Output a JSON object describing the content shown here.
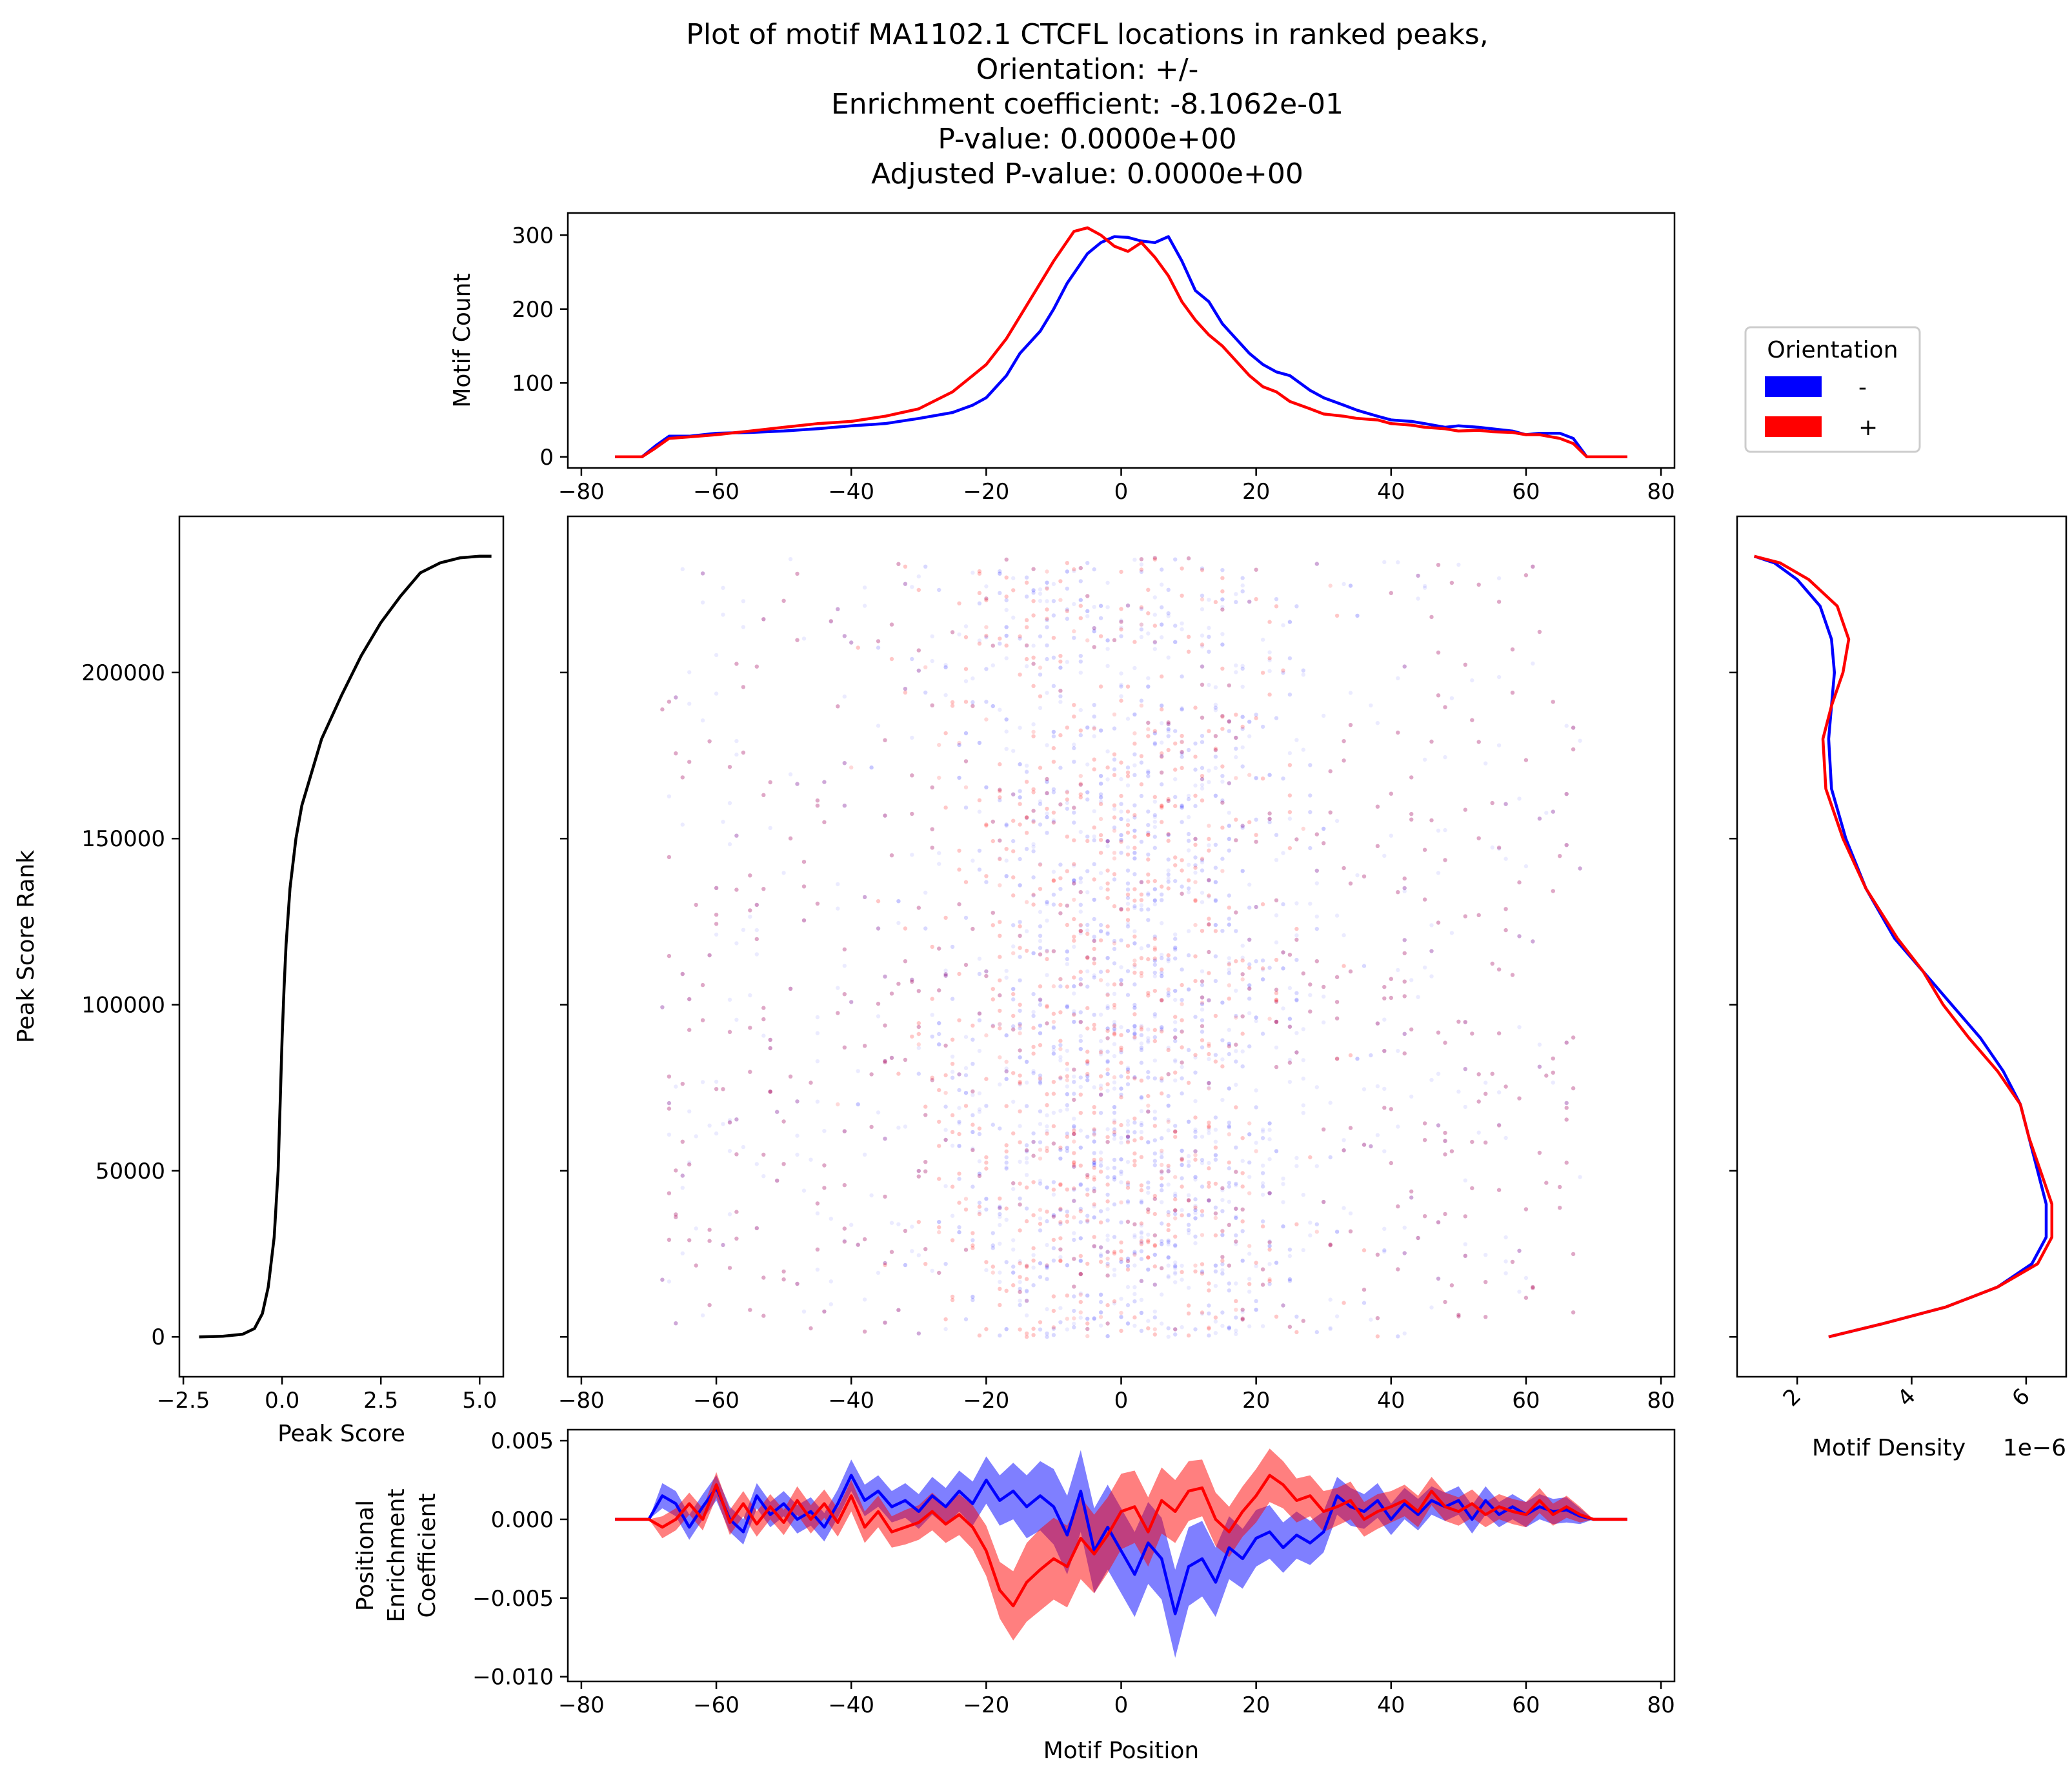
{
  "title_lines": [
    "Plot of motif MA1102.1 CTCFL locations in ranked peaks,",
    "Orientation: +/-",
    "Enrichment coefficient: -8.1062e-01",
    "P-value: 0.0000e+00",
    "Adjusted P-value: 0.0000e+00"
  ],
  "legend": {
    "title": "Orientation",
    "placement": "right of top panel",
    "entries": [
      {
        "label": "-",
        "color": "#0000ff"
      },
      {
        "label": "+",
        "color": "#ff0000"
      }
    ]
  },
  "colors": {
    "minus": "#0000ff",
    "plus": "#ff0000",
    "peak_score": "#000000"
  },
  "chart_data": [
    {
      "id": "motif-count",
      "type": "line",
      "xlabel": "",
      "ylabel": "Motif Count",
      "xlim": [
        -82,
        82
      ],
      "ylim": [
        -15,
        330
      ],
      "xticks": [
        -80,
        -60,
        -40,
        -20,
        0,
        20,
        40,
        60,
        80
      ],
      "xtick_labels": [
        "−80",
        "−60",
        "−40",
        "−20",
        "0",
        "20",
        "40",
        "60",
        "80"
      ],
      "yticks": [
        0,
        100,
        200,
        300
      ],
      "ytick_labels": [
        "0",
        "100",
        "200",
        "300"
      ],
      "series": [
        {
          "name": "-",
          "color": "#0000ff",
          "x": [
            -75,
            -71,
            -69,
            -67,
            -64,
            -60,
            -55,
            -50,
            -45,
            -40,
            -35,
            -30,
            -25,
            -22,
            -20,
            -17,
            -15,
            -12,
            -10,
            -8,
            -5,
            -3,
            -1,
            1,
            3,
            5,
            7,
            9,
            11,
            13,
            15,
            17,
            19,
            21,
            23,
            25,
            28,
            30,
            33,
            35,
            38,
            40,
            43,
            45,
            48,
            50,
            53,
            55,
            58,
            60,
            62,
            65,
            67,
            69,
            71,
            75
          ],
          "y": [
            0,
            0,
            15,
            28,
            28,
            32,
            33,
            35,
            38,
            42,
            45,
            52,
            60,
            70,
            80,
            110,
            140,
            170,
            200,
            235,
            275,
            290,
            298,
            297,
            292,
            290,
            298,
            265,
            225,
            210,
            180,
            160,
            140,
            125,
            115,
            110,
            90,
            80,
            70,
            63,
            55,
            50,
            48,
            45,
            40,
            42,
            40,
            38,
            35,
            30,
            32,
            32,
            25,
            0,
            0,
            0
          ]
        },
        {
          "name": "+",
          "color": "#ff0000",
          "x": [
            -75,
            -71,
            -69,
            -67,
            -64,
            -60,
            -55,
            -50,
            -45,
            -40,
            -35,
            -30,
            -25,
            -22,
            -20,
            -17,
            -15,
            -12,
            -10,
            -7,
            -5,
            -3,
            -1,
            1,
            3,
            5,
            7,
            9,
            11,
            13,
            15,
            17,
            19,
            21,
            23,
            25,
            28,
            30,
            33,
            35,
            38,
            40,
            43,
            45,
            48,
            50,
            53,
            55,
            58,
            60,
            62,
            65,
            67,
            69,
            71,
            75
          ],
          "y": [
            0,
            0,
            12,
            25,
            27,
            30,
            35,
            40,
            45,
            48,
            55,
            65,
            88,
            110,
            125,
            160,
            190,
            235,
            265,
            305,
            310,
            300,
            285,
            278,
            290,
            270,
            245,
            210,
            185,
            165,
            150,
            130,
            110,
            95,
            88,
            75,
            65,
            58,
            55,
            52,
            50,
            45,
            43,
            40,
            38,
            35,
            36,
            34,
            33,
            30,
            30,
            25,
            18,
            0,
            0,
            0
          ]
        }
      ]
    },
    {
      "id": "peak-score",
      "type": "line",
      "xlabel": "Peak Score",
      "ylabel": "Peak Score Rank",
      "xlim": [
        -2.6,
        5.6
      ],
      "ylim": [
        -12000,
        247000
      ],
      "xticks": [
        -2.5,
        0,
        2.5,
        5
      ],
      "xtick_labels": [
        "−2.5",
        "0.0",
        "2.5",
        "5.0"
      ],
      "yticks": [
        0,
        50000,
        100000,
        150000,
        200000
      ],
      "ytick_labels": [
        "0",
        "50000",
        "100000",
        "150000",
        "200000"
      ],
      "series": [
        {
          "name": "",
          "color": "#000000",
          "x": [
            -2.1,
            -1.5,
            -1.0,
            -0.7,
            -0.5,
            -0.35,
            -0.2,
            -0.1,
            -0.05,
            0.0,
            0.05,
            0.1,
            0.2,
            0.35,
            0.5,
            0.75,
            1.0,
            1.5,
            2.0,
            2.5,
            3.0,
            3.5,
            4.0,
            4.5,
            5.0,
            5.3
          ],
          "y": [
            0,
            200,
            800,
            2500,
            7000,
            15000,
            30000,
            50000,
            70000,
            90000,
            105000,
            118000,
            135000,
            150000,
            160000,
            170000,
            180000,
            193000,
            205000,
            215000,
            223000,
            230000,
            233000,
            234500,
            235000,
            235000
          ]
        }
      ]
    },
    {
      "id": "motif-scatter",
      "type": "scatter",
      "xlabel": "",
      "ylabel": "",
      "xlim": [
        -82,
        82
      ],
      "ylim": [
        -12000,
        247000
      ],
      "xticks": [
        -80,
        -60,
        -40,
        -20,
        0,
        20,
        40,
        60,
        80
      ],
      "xtick_labels": [
        "−80",
        "−60",
        "−40",
        "−20",
        "0",
        "20",
        "40",
        "60",
        "80"
      ],
      "x_range": [
        -68,
        68
      ],
      "y_range": [
        0,
        235000
      ],
      "point_opacity": 0.08,
      "series": [
        {
          "name": "-",
          "color": "#0000ff"
        },
        {
          "name": "+",
          "color": "#ff0000"
        }
      ]
    },
    {
      "id": "motif-density",
      "type": "line",
      "xlabel": "Motif Density",
      "x_offset_label": "1e−6",
      "ylabel": "",
      "xlim": [
        0.95,
        6.7
      ],
      "ylim": [
        -12000,
        247000
      ],
      "xticks": [
        2,
        4,
        6
      ],
      "xtick_labels": [
        "2",
        "4",
        "6"
      ],
      "series": [
        {
          "name": "-",
          "color": "#0000ff",
          "x": [
            2.55,
            3.5,
            4.6,
            5.5,
            6.1,
            6.35,
            6.35,
            6.2,
            6.05,
            5.9,
            5.6,
            5.2,
            4.7,
            4.2,
            3.7,
            3.2,
            2.85,
            2.6,
            2.55,
            2.6,
            2.65,
            2.6,
            2.4,
            2.0,
            1.6,
            1.25
          ],
          "y": [
            0,
            4000,
            9000,
            15000,
            22000,
            30000,
            40000,
            50000,
            60000,
            70000,
            80000,
            90000,
            100000,
            110000,
            120000,
            135000,
            150000,
            165000,
            180000,
            190000,
            200000,
            210000,
            220000,
            228000,
            233000,
            235000
          ]
        },
        {
          "name": "+",
          "color": "#ff0000",
          "x": [
            2.55,
            3.5,
            4.6,
            5.5,
            6.2,
            6.45,
            6.45,
            6.25,
            6.05,
            5.9,
            5.5,
            5.0,
            4.55,
            4.2,
            3.75,
            3.2,
            2.8,
            2.5,
            2.45,
            2.6,
            2.8,
            2.9,
            2.7,
            2.2,
            1.7,
            1.25
          ],
          "y": [
            0,
            4000,
            9000,
            15000,
            22000,
            30000,
            40000,
            50000,
            60000,
            70000,
            80000,
            90000,
            100000,
            110000,
            120000,
            135000,
            150000,
            165000,
            180000,
            190000,
            200000,
            210000,
            220000,
            228000,
            233000,
            235000
          ]
        }
      ]
    },
    {
      "id": "positional-enrichment",
      "type": "line",
      "xlabel": "Motif Position",
      "ylabel_lines": [
        "Positional",
        "Enrichment",
        "Coefficient"
      ],
      "xlim": [
        -82,
        82
      ],
      "ylim": [
        -0.0103,
        0.0057
      ],
      "xticks": [
        -80,
        -60,
        -40,
        -20,
        0,
        20,
        40,
        60,
        80
      ],
      "xtick_labels": [
        "−80",
        "−60",
        "−40",
        "−20",
        "0",
        "20",
        "40",
        "60",
        "80"
      ],
      "yticks": [
        0.005,
        0.0,
        -0.005,
        -0.01
      ],
      "ytick_labels": [
        "0.005",
        "0.000",
        "−0.005",
        "−0.010"
      ],
      "series": [
        {
          "name": "-",
          "color": "#0000ff",
          "band_opacity": 0.5,
          "x": [
            -75,
            -70,
            -68,
            -66,
            -64,
            -62,
            -60,
            -58,
            -56,
            -54,
            -52,
            -50,
            -48,
            -46,
            -44,
            -42,
            -40,
            -38,
            -36,
            -34,
            -32,
            -30,
            -28,
            -26,
            -24,
            -22,
            -20,
            -18,
            -16,
            -14,
            -12,
            -10,
            -8,
            -6,
            -4,
            -2,
            0,
            2,
            4,
            6,
            8,
            10,
            12,
            14,
            16,
            18,
            20,
            22,
            24,
            26,
            28,
            30,
            32,
            34,
            36,
            38,
            40,
            42,
            44,
            46,
            48,
            50,
            52,
            54,
            56,
            58,
            60,
            62,
            64,
            66,
            68,
            70,
            75
          ],
          "y": [
            0,
            0,
            0.0015,
            0.001,
            -0.0005,
            0.0008,
            0.002,
            0.0,
            -0.0008,
            0.0015,
            0.0003,
            0.001,
            0.0,
            0.0005,
            -0.0005,
            0.001,
            0.0028,
            0.0012,
            0.0018,
            0.0008,
            0.0012,
            0.0005,
            0.0015,
            0.0008,
            0.0018,
            0.001,
            0.0025,
            0.0012,
            0.0018,
            0.0008,
            0.0015,
            0.0008,
            -0.001,
            0.0018,
            -0.002,
            -0.0005,
            -0.002,
            -0.0035,
            -0.0015,
            -0.0025,
            -0.006,
            -0.003,
            -0.0025,
            -0.004,
            -0.0018,
            -0.0025,
            -0.0012,
            -0.0008,
            -0.0018,
            -0.001,
            -0.0015,
            -0.0008,
            0.0015,
            0.0008,
            0.0005,
            0.0012,
            0.0,
            0.001,
            0.0003,
            0.0012,
            0.0008,
            0.0012,
            0.0,
            0.0012,
            0.0003,
            0.0008,
            0.0003,
            0.0008,
            0.0005,
            0.0006,
            0.0002,
            0,
            0
          ],
          "err": [
            0,
            0,
            0.0008,
            0.0008,
            0.0008,
            0.0008,
            0.0008,
            0.0008,
            0.0008,
            0.0008,
            0.0008,
            0.0008,
            0.0009,
            0.0009,
            0.0009,
            0.0009,
            0.001,
            0.001,
            0.001,
            0.001,
            0.0011,
            0.0011,
            0.0012,
            0.0012,
            0.0013,
            0.0014,
            0.0015,
            0.0016,
            0.0018,
            0.002,
            0.0022,
            0.0024,
            0.0025,
            0.0026,
            0.0027,
            0.0027,
            0.0027,
            0.0027,
            0.0026,
            0.0026,
            0.0028,
            0.0025,
            0.0024,
            0.0022,
            0.002,
            0.0019,
            0.0018,
            0.0017,
            0.0016,
            0.0015,
            0.0014,
            0.0013,
            0.0012,
            0.0012,
            0.0011,
            0.0011,
            0.001,
            0.001,
            0.001,
            0.0009,
            0.0009,
            0.0009,
            0.0009,
            0.0009,
            0.0008,
            0.0008,
            0.0008,
            0.0008,
            0.0008,
            0.0008,
            0.0005,
            0,
            0
          ]
        },
        {
          "name": "+",
          "color": "#ff0000",
          "band_opacity": 0.5,
          "x": [
            -75,
            -70,
            -68,
            -66,
            -64,
            -62,
            -60,
            -58,
            -56,
            -54,
            -52,
            -50,
            -48,
            -46,
            -44,
            -42,
            -40,
            -38,
            -36,
            -34,
            -32,
            -30,
            -28,
            -26,
            -24,
            -22,
            -20,
            -18,
            -16,
            -14,
            -12,
            -10,
            -8,
            -6,
            -4,
            -2,
            0,
            2,
            4,
            6,
            8,
            10,
            12,
            14,
            16,
            18,
            20,
            22,
            24,
            26,
            28,
            30,
            32,
            34,
            36,
            38,
            40,
            42,
            44,
            46,
            48,
            50,
            52,
            54,
            56,
            58,
            60,
            62,
            64,
            66,
            68,
            70,
            75
          ],
          "y": [
            0,
            0,
            -0.0005,
            0.0,
            0.001,
            0.0,
            0.0022,
            -0.0002,
            0.001,
            -0.0003,
            0.0008,
            -0.0002,
            0.0012,
            0.0,
            0.001,
            -0.0002,
            0.0015,
            -0.0005,
            0.0005,
            -0.0008,
            -0.0005,
            -0.0002,
            0.0005,
            -0.0003,
            0.0003,
            -0.0005,
            -0.002,
            -0.0045,
            -0.0055,
            -0.004,
            -0.0032,
            -0.0025,
            -0.003,
            -0.0012,
            -0.0022,
            -0.001,
            0.0005,
            0.0008,
            -0.0008,
            0.0012,
            0.0005,
            0.0018,
            0.002,
            0.0,
            -0.0008,
            0.0005,
            0.0015,
            0.0028,
            0.0022,
            0.0012,
            0.0015,
            0.0005,
            0.0008,
            0.0012,
            0.0,
            0.0005,
            0.0008,
            0.0012,
            0.0005,
            0.0018,
            0.0008,
            0.0005,
            0.001,
            0.0003,
            0.0008,
            0.0005,
            0.0003,
            0.0012,
            0.0003,
            0.0008,
            0.0003,
            0,
            0
          ],
          "err": [
            0,
            0,
            0.0007,
            0.0007,
            0.0007,
            0.0007,
            0.0008,
            0.0008,
            0.0008,
            0.0008,
            0.0008,
            0.0008,
            0.0009,
            0.0009,
            0.0009,
            0.0009,
            0.001,
            0.001,
            0.001,
            0.001,
            0.0011,
            0.0011,
            0.0012,
            0.0012,
            0.0013,
            0.0014,
            0.0016,
            0.0018,
            0.0022,
            0.0025,
            0.0026,
            0.0026,
            0.0026,
            0.0026,
            0.0025,
            0.0024,
            0.0024,
            0.0023,
            0.0022,
            0.0021,
            0.002,
            0.0019,
            0.0018,
            0.0017,
            0.0016,
            0.0016,
            0.0017,
            0.0017,
            0.0015,
            0.0014,
            0.0013,
            0.0013,
            0.0012,
            0.0012,
            0.0011,
            0.0011,
            0.001,
            0.001,
            0.001,
            0.0009,
            0.0009,
            0.0009,
            0.0009,
            0.0008,
            0.0008,
            0.0008,
            0.0008,
            0.0008,
            0.0007,
            0.0007,
            0.0005,
            0,
            0
          ]
        }
      ]
    }
  ]
}
